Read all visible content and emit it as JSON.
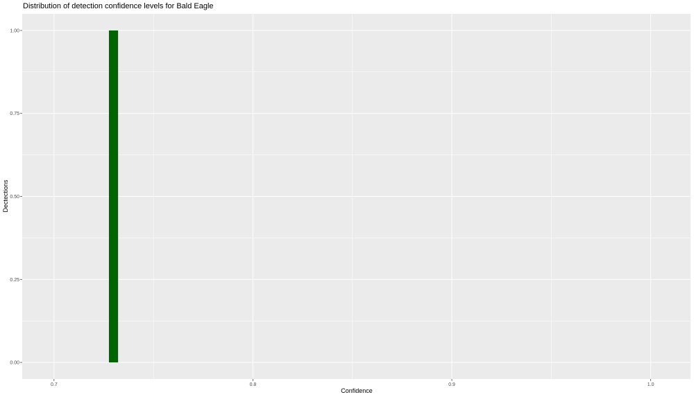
{
  "chart_data": {
    "type": "bar",
    "title": "Distribution of detection confidence levels for Bald Eagle",
    "xlabel": "Confidence",
    "ylabel": "Dectections",
    "xlim": [
      0.684,
      1.02
    ],
    "ylim": [
      -0.05,
      1.05
    ],
    "xticks": [
      0.7,
      0.8,
      0.9,
      1.0
    ],
    "xtick_labels": [
      "0.7",
      "0.8",
      "0.9",
      "1.0"
    ],
    "yticks": [
      0,
      0.25,
      0.5,
      0.75,
      1.0
    ],
    "ytick_labels": [
      "0.00",
      "0.25",
      "0.50",
      "0.75",
      "1.00"
    ],
    "grid": true,
    "bars": [
      {
        "x_start": 0.7276,
        "x_end": 0.7322,
        "value": 1
      }
    ],
    "colors": {
      "bar": "#006400",
      "panel": "#ebebeb",
      "grid": "#ffffff"
    }
  }
}
